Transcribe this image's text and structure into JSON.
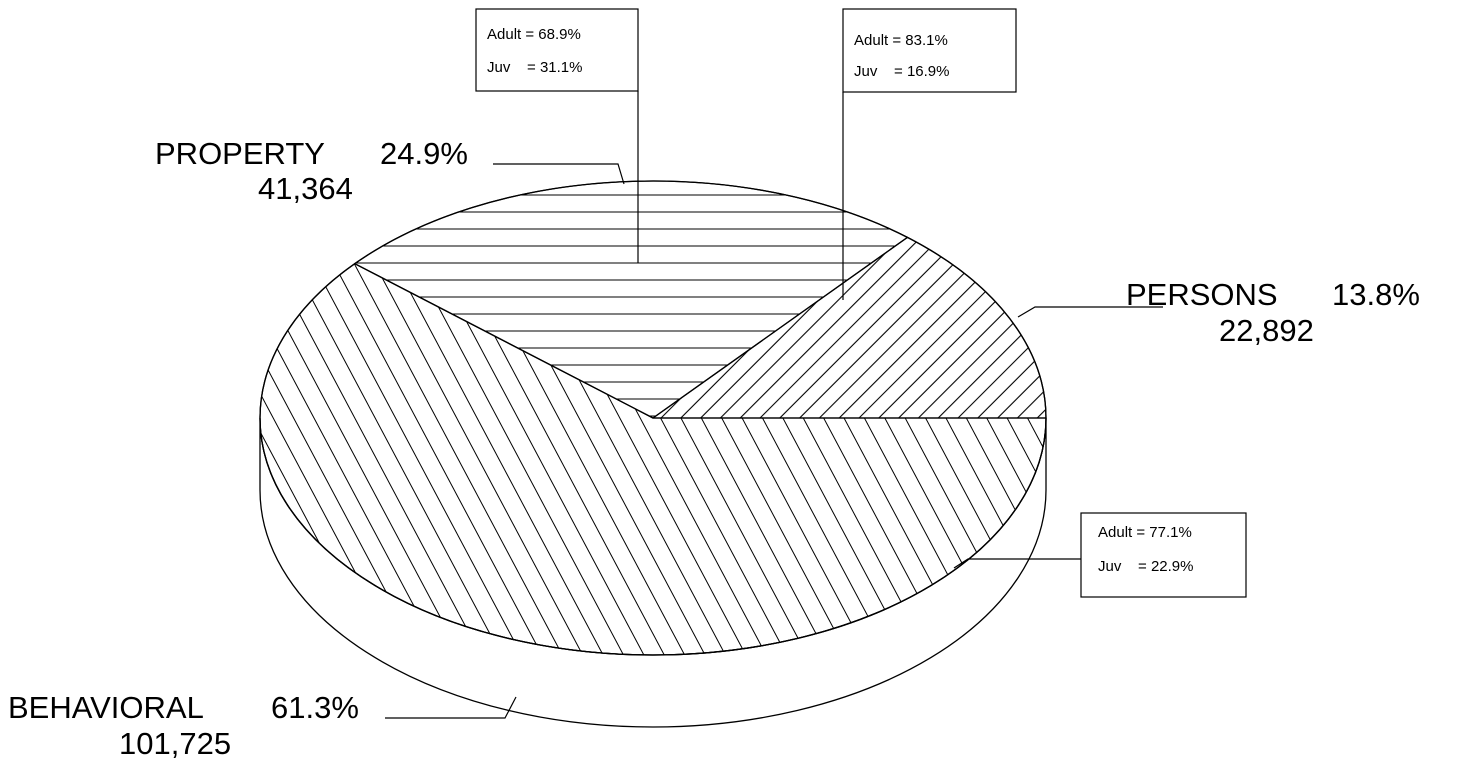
{
  "chart_data": {
    "type": "pie",
    "title": "",
    "categories": [
      "PROPERTY",
      "PERSONS",
      "BEHAVIORAL"
    ],
    "values": [
      41364,
      22892,
      101725
    ],
    "percent_labels": [
      "24.9%",
      "13.8%",
      "61.3%"
    ],
    "count_labels": [
      "41,364",
      "22,892",
      "101,725"
    ],
    "hatch": [
      "horizontal",
      "backslash-diagonal",
      "forward-diagonal"
    ],
    "breakdowns": [
      {
        "category": "PROPERTY",
        "lines": [
          "Adult = 68.9%",
          "Juv    = 31.1%"
        ]
      },
      {
        "category": "PERSONS",
        "lines": [
          "Adult = 83.1%",
          "Juv    = 16.9%"
        ]
      },
      {
        "category": "BEHAVIORAL",
        "lines": [
          "Adult = 77.1%",
          "Juv    = 22.9%"
        ]
      }
    ],
    "style": "3d",
    "legend": "none",
    "grid": false
  }
}
